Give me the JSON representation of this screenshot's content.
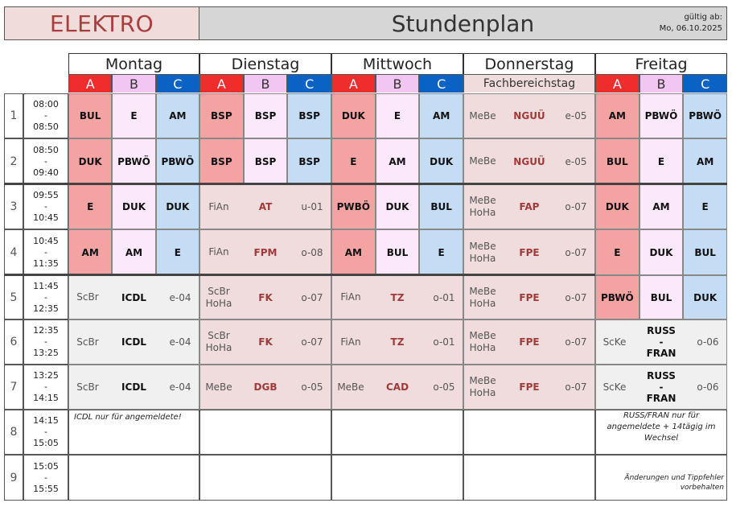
{
  "header": {
    "class_name": "ELEKTRO",
    "title": "Stundenplan",
    "valid_label": "gültig ab:",
    "valid_date": "Mo, 06.10.2025"
  },
  "days": [
    "Montag",
    "Dienstag",
    "Mittwoch",
    "Donnerstag",
    "Freitag"
  ],
  "groups": {
    "a": "A",
    "b": "B",
    "c": "C",
    "thursday_label": "Fachbereichstag"
  },
  "colors": {
    "group_a": "#ef2d2d",
    "group_b": "#f2c6f2",
    "group_c": "#0a63c4",
    "a_cell": "#f4a3a3",
    "b_cell": "#fbe9fb",
    "c_cell": "#c5dcf5",
    "special_cell": "#f0dcdc",
    "general_cell": "#f0f0f0"
  },
  "periods": [
    {
      "n": "1",
      "t1": "08:00",
      "dash": "-",
      "t2": "08:50"
    },
    {
      "n": "2",
      "t1": "08:50",
      "dash": "-",
      "t2": "09:40"
    },
    {
      "n": "3",
      "t1": "09:55",
      "dash": "-",
      "t2": "10:45"
    },
    {
      "n": "4",
      "t1": "10:45",
      "dash": "-",
      "t2": "11:35"
    },
    {
      "n": "5",
      "t1": "11:45",
      "dash": "-",
      "t2": "12:35"
    },
    {
      "n": "6",
      "t1": "12:35",
      "dash": "-",
      "t2": "13:25"
    },
    {
      "n": "7",
      "t1": "13:25",
      "dash": "-",
      "t2": "14:15"
    },
    {
      "n": "8",
      "t1": "14:15",
      "dash": "-",
      "t2": "15:05"
    },
    {
      "n": "9",
      "t1": "15:05",
      "dash": "-",
      "t2": "15:55"
    }
  ],
  "montag": {
    "p1": [
      "BUL",
      "E",
      "AM"
    ],
    "p2": [
      "DUK",
      "PBWÖ",
      "PBWÖ"
    ],
    "p3": [
      "E",
      "DUK",
      "DUK"
    ],
    "p4": [
      "AM",
      "AM",
      "E"
    ],
    "p5": {
      "t1": "ScBr",
      "t2": "",
      "s": "ICDL",
      "r": "e-04"
    },
    "p6": {
      "t1": "ScBr",
      "t2": "",
      "s": "ICDL",
      "r": "e-04"
    },
    "p7": {
      "t1": "ScBr",
      "t2": "",
      "s": "ICDL",
      "r": "e-04"
    },
    "note": "ICDL nur für angemeldete!"
  },
  "dienstag": {
    "p1": [
      "BSP",
      "BSP",
      "BSP"
    ],
    "p2": [
      "BSP",
      "BSP",
      "BSP"
    ],
    "p3": {
      "t1": "FiAn",
      "t2": "",
      "s": "AT",
      "r": "u-01"
    },
    "p4": {
      "t1": "FiAn",
      "t2": "",
      "s": "FPM",
      "r": "o-08"
    },
    "p5": {
      "t1": "ScBr",
      "t2": "HoHa",
      "s": "FK",
      "r": "o-07"
    },
    "p6": {
      "t1": "ScBr",
      "t2": "HoHa",
      "s": "FK",
      "r": "o-07"
    },
    "p7": {
      "t1": "MeBe",
      "t2": "",
      "s": "DGB",
      "r": "o-05"
    }
  },
  "mittwoch": {
    "p1": [
      "DUK",
      "E",
      "AM"
    ],
    "p2": [
      "E",
      "AM",
      "DUK"
    ],
    "p3": [
      "PWBÖ",
      "DUK",
      "BUL"
    ],
    "p4": [
      "AM",
      "BUL",
      "E"
    ],
    "p5": {
      "t1": "FiAn",
      "t2": "",
      "s": "TZ",
      "r": "o-01"
    },
    "p6": {
      "t1": "FiAn",
      "t2": "",
      "s": "TZ",
      "r": "o-01"
    },
    "p7": {
      "t1": "MeBe",
      "t2": "",
      "s": "CAD",
      "r": "o-05"
    }
  },
  "donnerstag": {
    "p1": {
      "t1": "MeBe",
      "t2": "",
      "s": "NGUÜ",
      "r": "e-05"
    },
    "p2": {
      "t1": "MeBe",
      "t2": "",
      "s": "NGUÜ",
      "r": "e-05"
    },
    "p3": {
      "t1": "MeBe",
      "t2": "HoHa",
      "s": "FAP",
      "r": "o-07"
    },
    "p4": {
      "t1": "MeBe",
      "t2": "HoHa",
      "s": "FPE",
      "r": "o-07"
    },
    "p5": {
      "t1": "MeBe",
      "t2": "HoHa",
      "s": "FPE",
      "r": "o-07"
    },
    "p6": {
      "t1": "MeBe",
      "t2": "HoHa",
      "s": "FPE",
      "r": "o-07"
    },
    "p7": {
      "t1": "MeBe",
      "t2": "HoHa",
      "s": "FPE",
      "r": "o-07"
    }
  },
  "freitag": {
    "p1": [
      "AM",
      "PBWÖ",
      "PBWÖ"
    ],
    "p2": [
      "BUL",
      "E",
      "AM"
    ],
    "p3": [
      "DUK",
      "AM",
      "E"
    ],
    "p4": [
      "E",
      "DUK",
      "BUL"
    ],
    "p5": [
      "PBWÖ",
      "BUL",
      "DUK"
    ],
    "p6": {
      "t1": "ScKe",
      "s1": "RUSS",
      "s2": "-",
      "s3": "FRAN",
      "r": "o-06"
    },
    "p7": {
      "t1": "ScKe",
      "s1": "RUSS",
      "s2": "-",
      "s3": "FRAN",
      "r": "o-06"
    },
    "note": "RUSS/FRAN nur für angemeldete + 14tägig im Wechsel"
  },
  "disclaimer": "Änderungen und Tippfehler vorbehalten"
}
